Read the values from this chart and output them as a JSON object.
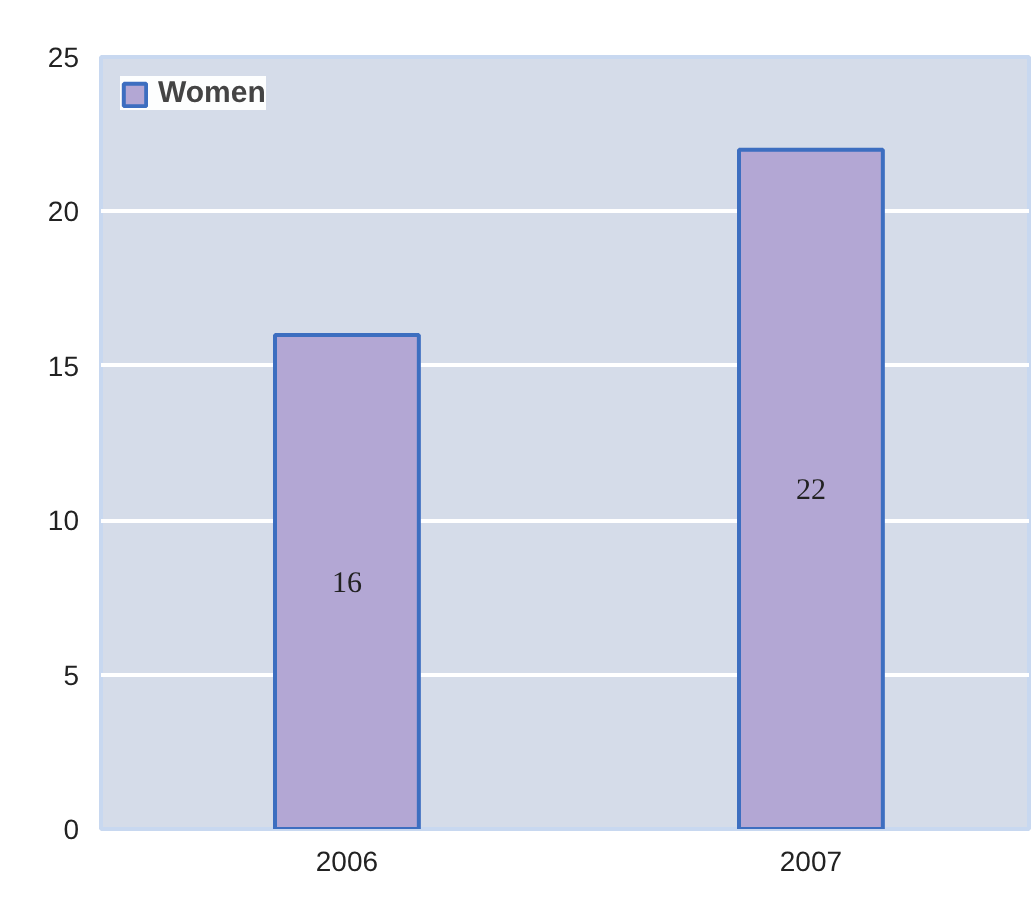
{
  "chart_data": {
    "type": "bar",
    "categories": [
      "2006",
      "2007"
    ],
    "series": [
      {
        "name": "Women",
        "color": "#b3a7d4",
        "values": [
          16,
          22
        ]
      }
    ],
    "ylim": [
      0,
      25
    ],
    "yticks": [
      0,
      5,
      10,
      15,
      20,
      25
    ],
    "grid": "y",
    "legend": "top left",
    "data_labels": true
  }
}
